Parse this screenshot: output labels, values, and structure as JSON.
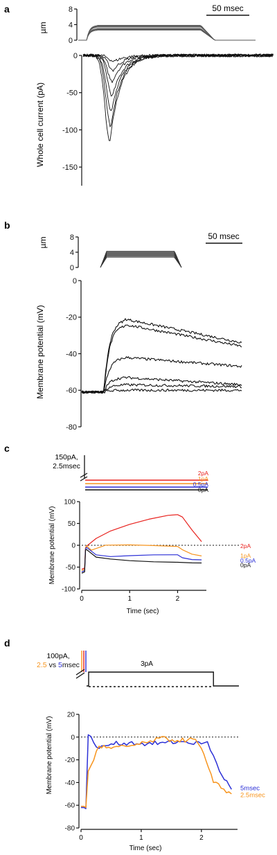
{
  "colors": {
    "ink": "#111111",
    "red": "#e8201c",
    "orange": "#f7941d",
    "blue": "#2b2fd6"
  },
  "chart_data": [
    {
      "panel": "a",
      "type": "line",
      "stimulus": {
        "ylabel": "µm",
        "yticks": [
          "8",
          "4",
          "0"
        ],
        "ylim": [
          0,
          8
        ],
        "levels": [
          2.8,
          3.6
        ],
        "scalebar": "50 msec"
      },
      "ylabel": "Whole cell current (pA)",
      "yticks": [
        "0",
        "-50",
        "-100",
        "-150"
      ],
      "ylim": [
        -175,
        0
      ],
      "traces": [
        {
          "peak": -117,
          "peak_t": 0.155
        },
        {
          "peak": -95,
          "peak_t": 0.16
        },
        {
          "peak": -75,
          "peak_t": 0.165
        },
        {
          "peak": -55,
          "peak_t": 0.17
        },
        {
          "peak": -35,
          "peak_t": 0.17
        },
        {
          "peak": -20,
          "peak_t": 0.175
        },
        {
          "peak": -8,
          "peak_t": 0.18
        }
      ]
    },
    {
      "panel": "b",
      "type": "line",
      "stimulus": {
        "ylabel": "µm",
        "yticks": [
          "8",
          "4",
          "0"
        ],
        "ylim": [
          0,
          8
        ],
        "levels": [
          2.6,
          4.3
        ],
        "scalebar": "50 msec"
      },
      "ylabel": "Membrane potential (mV)",
      "yticks": [
        "0",
        "-20",
        "-40",
        "-60",
        "-80"
      ],
      "ylim": [
        -80,
        0
      ],
      "traces": [
        {
          "peak": -21,
          "end": -34
        },
        {
          "peak": -24,
          "end": -36
        },
        {
          "peak": -42,
          "end": -47
        },
        {
          "peak": -53,
          "end": -57
        },
        {
          "peak": -57,
          "end": -58
        },
        {
          "peak": -60,
          "end": -60
        }
      ]
    },
    {
      "panel": "c",
      "type": "line",
      "stimulus": {
        "label": "150pA,\n2.5msec",
        "steps": [
          "2pA",
          "1pA",
          "0.5pA",
          "0pA"
        ]
      },
      "xlabel": "Time (sec)",
      "ylabel": "Membrane potential (mV)",
      "xticks": [
        "0",
        "1",
        "2"
      ],
      "yticks": [
        "100",
        "50",
        "0",
        "-50",
        "-100"
      ],
      "xlim": [
        0,
        2.6
      ],
      "ylim": [
        -100,
        100
      ],
      "series": [
        {
          "name": "2pA",
          "x": [
            0.1,
            0.3,
            0.6,
            1.0,
            1.4,
            1.8,
            2.0,
            2.1,
            2.3,
            2.5
          ],
          "y": [
            -2,
            15,
            32,
            48,
            60,
            68,
            70,
            65,
            35,
            8
          ]
        },
        {
          "name": "1pA",
          "x": [
            0.1,
            0.2,
            0.5,
            1.0,
            1.5,
            2.0,
            2.1,
            2.3,
            2.5
          ],
          "y": [
            0,
            -12,
            0,
            1,
            0,
            -2,
            -10,
            -20,
            -24
          ]
        },
        {
          "name": "0.5pA",
          "x": [
            0.1,
            0.3,
            0.6,
            1.0,
            1.5,
            2.0,
            2.1,
            2.3,
            2.5
          ],
          "y": [
            -5,
            -22,
            -26,
            -24,
            -22,
            -22,
            -28,
            -32,
            -33
          ]
        },
        {
          "name": "0pA",
          "x": [
            0.1,
            0.3,
            0.6,
            1.0,
            1.5,
            2.0,
            2.3,
            2.5
          ],
          "y": [
            -10,
            -27,
            -32,
            -35,
            -37,
            -39,
            -40,
            -41
          ]
        }
      ]
    },
    {
      "panel": "d",
      "type": "line",
      "stimulus": {
        "label_prefix": "100pA,",
        "label_a": "2.5",
        "label_mid": " vs ",
        "label_b": "5",
        "label_suffix": "msec",
        "step": "3pA",
        "step_x": [
          0.1,
          2.2
        ]
      },
      "xlabel": "Time (sec)",
      "ylabel": "Membrane potential (mV)",
      "xticks": [
        "0",
        "1",
        "2"
      ],
      "yticks": [
        "20",
        "0",
        "-20",
        "-40",
        "-60",
        "-80"
      ],
      "xlim": [
        0,
        2.6
      ],
      "ylim": [
        -80,
        20
      ],
      "series": [
        {
          "name": "5msec",
          "x": [
            0.08,
            0.12,
            0.3,
            0.5,
            0.8,
            1.1,
            1.4,
            1.7,
            2.0,
            2.1,
            2.3,
            2.5
          ],
          "y": [
            -63,
            2,
            -10,
            -6,
            -5,
            -6,
            -5,
            -4,
            -6,
            -4,
            -30,
            -46
          ]
        },
        {
          "name": "2.5msec",
          "x": [
            0.08,
            0.12,
            0.3,
            0.5,
            0.8,
            1.1,
            1.3,
            1.6,
            1.9,
            2.0,
            2.2,
            2.5
          ],
          "y": [
            -62,
            -30,
            -8,
            -10,
            -8,
            -5,
            -1,
            -3,
            -2,
            -10,
            -40,
            -50
          ]
        }
      ]
    }
  ],
  "panels": [
    {
      "letter": "a",
      "scalebar": "50 msec",
      "stim_unit": "µm",
      "ylabel": "Whole cell current (pA)"
    },
    {
      "letter": "b",
      "scalebar": "50 msec",
      "stim_unit": "µm",
      "ylabel": "Membrane potential (mV)"
    },
    {
      "letter": "c",
      "stim_line1": "150pA,",
      "stim_line2": "2.5msec",
      "ylabel": "Membrane potential (mV)",
      "xlabel": "Time (sec)",
      "legend": [
        "2pA",
        "1pA",
        "0.5pA",
        "0pA"
      ]
    },
    {
      "letter": "d",
      "stim_line1": "100pA,",
      "stim_a": "2.5",
      "stim_mid": " vs ",
      "stim_b": "5",
      "stim_suffix": "msec",
      "step_label": "3pA",
      "ylabel": "Membrane potential (mV)",
      "xlabel": "Time (sec)",
      "legend": [
        "5msec",
        "2.5msec"
      ]
    }
  ]
}
